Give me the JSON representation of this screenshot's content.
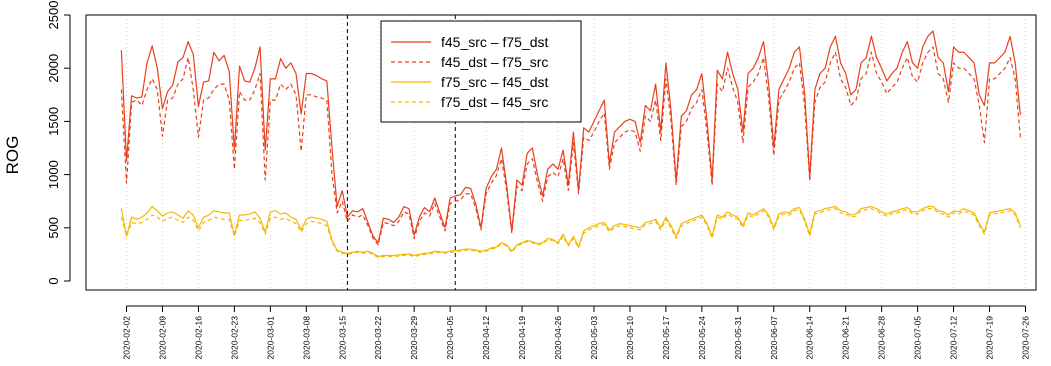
{
  "chart_data": {
    "type": "line",
    "ylabel": "ROG",
    "ylim": [
      0,
      2500
    ],
    "y_ticks": [
      0,
      500,
      1000,
      1500,
      2000,
      2500
    ],
    "x_tick_labels": [
      "2020-02-02",
      "2020-02-09",
      "2020-02-16",
      "2020-02-23",
      "2020-03-01",
      "2020-03-08",
      "2020-03-15",
      "2020-03-22",
      "2020-03-29",
      "2020-04-05",
      "2020-04-12",
      "2020-04-19",
      "2020-04-26",
      "2020-05-03",
      "2020-05-10",
      "2020-05-17",
      "2020-05-24",
      "2020-05-31",
      "2020-06-07",
      "2020-06-14",
      "2020-06-21",
      "2020-06-28",
      "2020-07-05",
      "2020-07-12",
      "2020-07-19",
      "2020-07-26"
    ],
    "x_start": "2020-02-01",
    "grid": "vertical dotted at weekly ticks",
    "vlines": [
      "2020-03-16",
      "2020-04-06"
    ],
    "legend_position": "top-center",
    "legend": [
      {
        "label": "f45_src – f75_dst",
        "color": "#e8401c",
        "dash": "solid"
      },
      {
        "label": "f45_dst – f75_src",
        "color": "#e8401c",
        "dash": "dashed"
      },
      {
        "label": "f75_src – f45_dst",
        "color": "#f5b800",
        "dash": "solid"
      },
      {
        "label": "f75_dst – f45_src",
        "color": "#f5b800",
        "dash": "dashed"
      }
    ],
    "series": [
      {
        "name": "f45_src – f75_dst",
        "color": "#e8401c",
        "dash": "solid",
        "values": [
          2170,
          1130,
          1740,
          1720,
          1730,
          2050,
          2210,
          2000,
          1620,
          1780,
          1840,
          2060,
          2100,
          2250,
          2130,
          1640,
          1870,
          1880,
          2150,
          2070,
          2120,
          1970,
          1230,
          2020,
          1880,
          1870,
          2000,
          2200,
          1230,
          1900,
          1900,
          2090,
          2000,
          2050,
          1950,
          1570,
          1950,
          1950,
          1930,
          1900,
          1880,
          1250,
          700,
          850,
          600,
          660,
          650,
          680,
          550,
          420,
          360,
          590,
          580,
          550,
          600,
          700,
          680,
          430,
          600,
          690,
          650,
          780,
          640,
          500,
          780,
          800,
          810,
          880,
          870,
          720,
          500,
          870,
          980,
          1050,
          1250,
          900,
          470,
          950,
          900,
          1200,
          1250,
          1000,
          800,
          1050,
          1100,
          1050,
          1230,
          900,
          1400,
          850,
          1440,
          1400,
          1500,
          1600,
          1700,
          1100,
          1400,
          1450,
          1500,
          1520,
          1500,
          1300,
          1650,
          1600,
          1850,
          1400,
          2050,
          1600,
          940,
          1550,
          1600,
          1750,
          1800,
          1950,
          1500,
          950,
          1980,
          1900,
          2150,
          1950,
          1800,
          1400,
          1950,
          2000,
          2100,
          2250,
          1850,
          1250,
          1800,
          1900,
          2000,
          2150,
          2200,
          1770,
          980,
          1800,
          1950,
          2000,
          2200,
          2300,
          2050,
          1950,
          1750,
          1800,
          2050,
          2100,
          2300,
          2100,
          2000,
          1880,
          1950,
          2000,
          2150,
          2250,
          2050,
          2000,
          2200,
          2300,
          2350,
          2100,
          2050,
          1780,
          2200,
          2150,
          2150,
          2100,
          2050,
          1750,
          1650,
          2050,
          2050,
          2100,
          2150,
          2300,
          2050,
          1560
        ]
      },
      {
        "name": "f45_dst – f75_src",
        "color": "#e8401c",
        "dash": "dashed",
        "values": [
          1800,
          920,
          1680,
          1700,
          1650,
          1800,
          1900,
          1800,
          1360,
          1700,
          1720,
          1850,
          1900,
          2100,
          1800,
          1350,
          1700,
          1720,
          1800,
          1850,
          1850,
          1700,
          1050,
          1780,
          1700,
          1700,
          1800,
          1950,
          950,
          1700,
          1700,
          1850,
          1800,
          1850,
          1750,
          1220,
          1750,
          1750,
          1730,
          1720,
          1700,
          1000,
          640,
          750,
          560,
          620,
          600,
          620,
          520,
          400,
          340,
          550,
          540,
          520,
          560,
          650,
          630,
          400,
          560,
          640,
          610,
          730,
          600,
          470,
          730,
          750,
          760,
          820,
          820,
          680,
          480,
          820,
          920,
          990,
          1150,
          850,
          450,
          890,
          850,
          1100,
          1150,
          930,
          750,
          980,
          1020,
          980,
          1150,
          850,
          1300,
          820,
          1350,
          1320,
          1400,
          1500,
          1580,
          1050,
          1300,
          1350,
          1400,
          1420,
          1400,
          1220,
          1550,
          1500,
          1700,
          1320,
          1900,
          1500,
          900,
          1450,
          1500,
          1620,
          1680,
          1800,
          1400,
          900,
          1850,
          1780,
          2000,
          1820,
          1680,
          1300,
          1820,
          1870,
          1950,
          2100,
          1720,
          1180,
          1700,
          1780,
          1870,
          2000,
          2050,
          1650,
          940,
          1680,
          1820,
          1870,
          2050,
          2150,
          1900,
          1820,
          1650,
          1700,
          1900,
          1950,
          2150,
          1950,
          1870,
          1760,
          1820,
          1870,
          2000,
          2100,
          1920,
          1870,
          2050,
          2150,
          2200,
          1950,
          1900,
          1680,
          2050,
          2000,
          2000,
          1950,
          1900,
          1650,
          1300,
          1900,
          1900,
          1950,
          2000,
          2100,
          1900,
          1350
        ]
      },
      {
        "name": "f75_src – f45_dst",
        "color": "#f5b800",
        "dash": "solid",
        "values": [
          680,
          420,
          600,
          580,
          600,
          640,
          700,
          660,
          610,
          640,
          650,
          620,
          590,
          660,
          620,
          500,
          600,
          620,
          660,
          650,
          640,
          640,
          430,
          620,
          620,
          630,
          650,
          590,
          460,
          650,
          660,
          630,
          640,
          600,
          580,
          480,
          580,
          600,
          590,
          580,
          560,
          380,
          290,
          270,
          260,
          270,
          280,
          270,
          280,
          260,
          230,
          240,
          240,
          240,
          245,
          250,
          255,
          240,
          250,
          260,
          265,
          280,
          275,
          270,
          280,
          285,
          290,
          300,
          300,
          290,
          280,
          290,
          310,
          320,
          360,
          340,
          280,
          340,
          360,
          380,
          370,
          350,
          360,
          400,
          390,
          360,
          440,
          340,
          420,
          320,
          470,
          500,
          520,
          540,
          550,
          480,
          520,
          540,
          530,
          520,
          510,
          500,
          550,
          560,
          580,
          500,
          600,
          520,
          420,
          540,
          560,
          580,
          600,
          620,
          540,
          420,
          620,
          600,
          650,
          620,
          600,
          520,
          640,
          620,
          650,
          680,
          620,
          500,
          630,
          650,
          640,
          680,
          690,
          580,
          440,
          650,
          660,
          680,
          690,
          700,
          660,
          650,
          620,
          630,
          680,
          690,
          700,
          680,
          650,
          630,
          650,
          660,
          680,
          690,
          650,
          650,
          680,
          700,
          700,
          660,
          650,
          620,
          660,
          650,
          680,
          660,
          640,
          540,
          460,
          640,
          650,
          660,
          670,
          680,
          640,
          520
        ]
      },
      {
        "name": "f75_dst – f45_src",
        "color": "#f5b800",
        "dash": "dashed",
        "values": [
          600,
          420,
          550,
          540,
          550,
          580,
          620,
          600,
          560,
          590,
          600,
          570,
          550,
          600,
          570,
          470,
          550,
          570,
          600,
          590,
          580,
          580,
          420,
          570,
          570,
          580,
          590,
          550,
          440,
          590,
          600,
          580,
          590,
          560,
          540,
          460,
          540,
          560,
          550,
          540,
          520,
          370,
          280,
          260,
          250,
          260,
          270,
          260,
          270,
          250,
          220,
          230,
          230,
          230,
          235,
          240,
          245,
          230,
          240,
          250,
          255,
          270,
          265,
          260,
          270,
          275,
          280,
          290,
          290,
          280,
          270,
          280,
          300,
          310,
          350,
          330,
          270,
          330,
          350,
          370,
          360,
          340,
          350,
          390,
          380,
          350,
          420,
          330,
          400,
          310,
          450,
          480,
          500,
          520,
          530,
          460,
          500,
          520,
          510,
          500,
          490,
          480,
          530,
          540,
          560,
          480,
          580,
          500,
          400,
          520,
          540,
          560,
          580,
          600,
          520,
          400,
          600,
          580,
          630,
          600,
          580,
          500,
          620,
          600,
          630,
          660,
          600,
          480,
          610,
          630,
          620,
          660,
          670,
          560,
          420,
          630,
          640,
          660,
          670,
          680,
          640,
          630,
          600,
          610,
          660,
          670,
          680,
          660,
          630,
          610,
          630,
          640,
          660,
          670,
          630,
          630,
          660,
          680,
          680,
          640,
          630,
          600,
          640,
          630,
          660,
          640,
          620,
          520,
          440,
          620,
          630,
          640,
          650,
          660,
          620,
          500
        ]
      }
    ]
  }
}
